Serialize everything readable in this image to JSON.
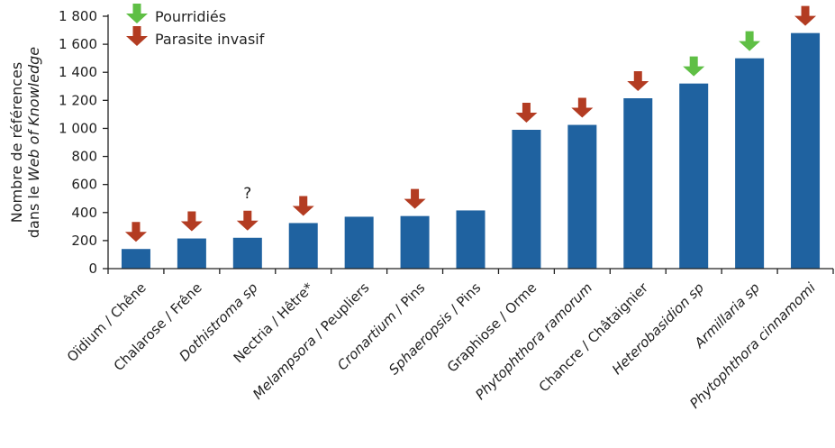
{
  "chart_data": {
    "type": "bar",
    "categories": [
      {
        "parts": [
          {
            "text": "Oïdium / Chêne",
            "italic": false
          }
        ]
      },
      {
        "parts": [
          {
            "text": "Chalarose / Frêne",
            "italic": false
          }
        ]
      },
      {
        "parts": [
          {
            "text": "Dothistroma sp",
            "italic": true
          }
        ]
      },
      {
        "parts": [
          {
            "text": "Nectria / Hêtre*",
            "italic": false
          }
        ]
      },
      {
        "parts": [
          {
            "text": "Melampsora",
            "italic": true
          },
          {
            "text": " / Peupliers",
            "italic": false
          }
        ]
      },
      {
        "parts": [
          {
            "text": "Cronartium",
            "italic": true
          },
          {
            "text": " / Pins",
            "italic": false
          }
        ]
      },
      {
        "parts": [
          {
            "text": "Sphaeropsis",
            "italic": true
          },
          {
            "text": " / Pins",
            "italic": false
          }
        ]
      },
      {
        "parts": [
          {
            "text": "Graphiose / Orme",
            "italic": false
          }
        ]
      },
      {
        "parts": [
          {
            "text": "Phytophthora ramorum",
            "italic": true
          }
        ]
      },
      {
        "parts": [
          {
            "text": "Chancre / Châtaignier",
            "italic": false
          }
        ]
      },
      {
        "parts": [
          {
            "text": "Heterobasidion sp",
            "italic": true
          }
        ]
      },
      {
        "parts": [
          {
            "text": "Armillaria sp",
            "italic": true
          }
        ]
      },
      {
        "parts": [
          {
            "text": "Phytophthora cinnamomi",
            "italic": true
          }
        ]
      }
    ],
    "values": [
      140,
      215,
      220,
      325,
      370,
      375,
      415,
      990,
      1025,
      1215,
      1320,
      1500,
      1680
    ],
    "markers": [
      "invasif",
      "invasif",
      "invasif",
      "invasif",
      "none",
      "invasif",
      "none",
      "invasif",
      "invasif",
      "invasif",
      "pourridie",
      "pourridie",
      "invasif"
    ],
    "annotations": [
      {
        "index": 2,
        "text": "?"
      }
    ],
    "ylabel_lines": [
      [
        {
          "text": "Nombre de références",
          "italic": false
        }
      ],
      [
        {
          "text": "dans le ",
          "italic": false
        },
        {
          "text": "Web of Knowledge",
          "italic": true
        }
      ]
    ],
    "yticks": [
      0,
      200,
      400,
      600,
      800,
      1000,
      1200,
      1400,
      1600,
      1800
    ],
    "ytick_labels": [
      "0",
      "200",
      "400",
      "600",
      "800",
      "1 000",
      "1 200",
      "1 400",
      "1 600",
      "1 800"
    ],
    "ylim": [
      0,
      1800
    ],
    "legend": [
      {
        "key": "pourridie",
        "label": "Pourridiés"
      },
      {
        "key": "invasif",
        "label": "Parasite invasif"
      }
    ],
    "legend_position": "top-left",
    "grid": false,
    "colors": {
      "bar": "#1f62a0",
      "pourridie": "#5fbf45",
      "invasif": "#b33c22",
      "axis": "#222222"
    }
  }
}
